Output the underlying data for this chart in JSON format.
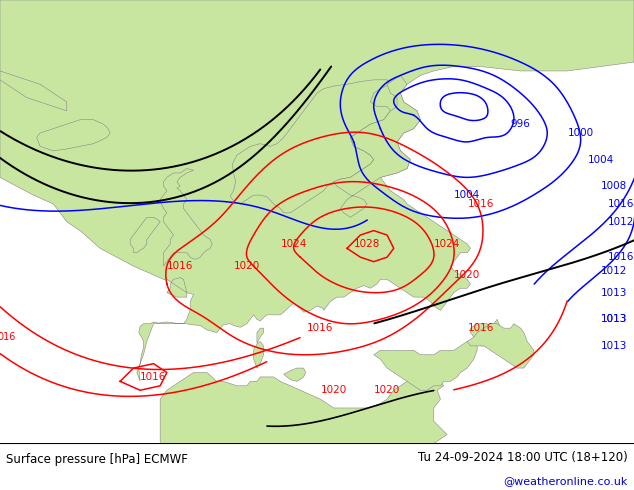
{
  "title_left": "Surface pressure [hPa] ECMWF",
  "title_right": "Tu 24-09-2024 18:00 UTC (18+120)",
  "watermark": "@weatheronline.co.uk",
  "watermark_color": "#0000cc",
  "land_color": "#c8e6a0",
  "sea_color": "#d8d8d8",
  "coast_color": "#888888",
  "fig_width": 6.34,
  "fig_height": 4.9,
  "dpi": 100,
  "bottom_bg": "#ffffff",
  "text_color": "#000000",
  "blue_isobar": "#0000ff",
  "red_isobar": "#ff0000",
  "black_isobar": "#000000"
}
